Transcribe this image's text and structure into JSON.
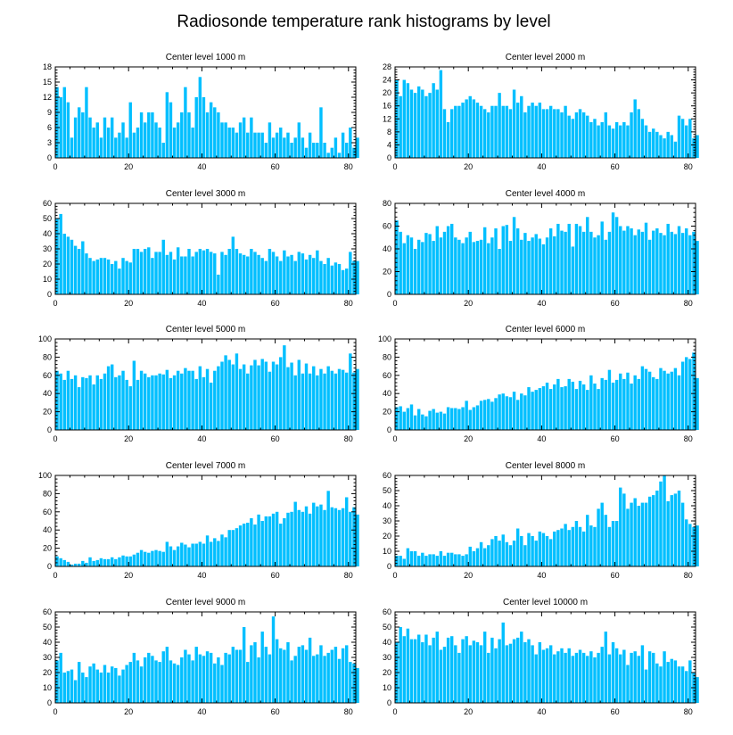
{
  "figure": {
    "title": "Radiosonde temperature rank histograms by level"
  },
  "colors": {
    "bar": "#00BFFF",
    "axis": "#000000",
    "background": "#ffffff"
  },
  "chart_data": [
    {
      "type": "bar",
      "title": "Center level 1000 m",
      "xlabel": "",
      "ylabel": "",
      "xlim": [
        0,
        82
      ],
      "ylim": [
        0,
        18
      ],
      "xticks": [
        0,
        20,
        40,
        60,
        80
      ],
      "yticks": [
        0,
        3,
        6,
        9,
        12,
        15,
        18
      ],
      "categories_start": 0,
      "values": [
        14,
        12,
        14,
        11,
        4,
        8,
        10,
        9,
        14,
        8,
        6,
        7,
        4,
        8,
        6,
        8,
        4,
        5,
        7,
        4,
        11,
        5,
        6,
        9,
        7,
        9,
        9,
        7,
        6,
        3,
        13,
        11,
        6,
        7,
        9,
        14,
        9,
        6,
        12,
        16,
        12,
        9,
        11,
        10,
        9,
        7,
        7,
        6,
        6,
        5,
        7,
        8,
        5,
        8,
        5,
        5,
        5,
        3,
        7,
        4,
        5,
        6,
        4,
        5,
        3,
        4,
        7,
        4,
        2,
        5,
        3,
        3,
        10,
        3,
        1,
        2,
        4,
        1,
        5,
        3,
        6,
        2,
        4
      ]
    },
    {
      "type": "bar",
      "title": "Center level 2000 m",
      "xlabel": "",
      "ylabel": "",
      "xlim": [
        0,
        82
      ],
      "ylim": [
        0,
        28
      ],
      "xticks": [
        0,
        20,
        40,
        60,
        80
      ],
      "yticks": [
        0,
        4,
        8,
        12,
        16,
        20,
        24,
        28
      ],
      "categories_start": 0,
      "values": [
        24,
        19,
        24,
        23,
        21,
        20,
        22,
        21,
        19,
        20,
        23,
        21,
        27,
        15,
        11,
        15,
        16,
        16,
        17,
        18,
        19,
        18,
        17,
        16,
        15,
        14,
        16,
        16,
        20,
        16,
        16,
        15,
        21,
        17,
        19,
        14,
        16,
        17,
        16,
        17,
        15,
        15,
        16,
        15,
        15,
        14,
        16,
        13,
        12,
        14,
        15,
        14,
        13,
        11,
        12,
        10,
        11,
        14,
        10,
        9,
        11,
        10,
        11,
        10,
        14,
        18,
        15,
        12,
        10,
        8,
        9,
        8,
        7,
        6,
        8,
        7,
        5,
        13,
        12,
        10,
        12,
        6,
        7
      ]
    },
    {
      "type": "bar",
      "title": "Center level 3000 m",
      "xlabel": "",
      "ylabel": "",
      "xlim": [
        0,
        82
      ],
      "ylim": [
        0,
        60
      ],
      "xticks": [
        0,
        20,
        40,
        60,
        80
      ],
      "yticks": [
        0,
        10,
        20,
        30,
        40,
        50,
        60
      ],
      "categories_start": 0,
      "values": [
        50,
        53,
        40,
        38,
        36,
        32,
        30,
        35,
        27,
        24,
        22,
        23,
        24,
        24,
        23,
        20,
        22,
        17,
        24,
        22,
        21,
        30,
        30,
        28,
        30,
        31,
        24,
        28,
        28,
        36,
        26,
        28,
        23,
        31,
        25,
        25,
        30,
        25,
        28,
        30,
        29,
        30,
        28,
        27,
        13,
        28,
        26,
        30,
        38,
        30,
        27,
        26,
        25,
        30,
        28,
        26,
        24,
        22,
        30,
        28,
        25,
        22,
        29,
        25,
        26,
        22,
        28,
        27,
        23,
        26,
        24,
        29,
        22,
        20,
        24,
        19,
        21,
        20,
        16,
        17,
        28,
        22,
        22
      ]
    },
    {
      "type": "bar",
      "title": "Center level 4000 m",
      "xlabel": "",
      "ylabel": "",
      "xlim": [
        0,
        82
      ],
      "ylim": [
        0,
        80
      ],
      "xticks": [
        0,
        20,
        40,
        60,
        80
      ],
      "yticks": [
        0,
        20,
        40,
        60,
        80
      ],
      "categories_start": 0,
      "values": [
        65,
        55,
        45,
        52,
        50,
        40,
        48,
        46,
        54,
        53,
        47,
        60,
        50,
        55,
        60,
        62,
        50,
        48,
        45,
        50,
        55,
        46,
        47,
        48,
        59,
        45,
        50,
        58,
        40,
        60,
        61,
        47,
        68,
        58,
        48,
        54,
        47,
        50,
        53,
        49,
        44,
        50,
        58,
        51,
        62,
        56,
        55,
        62,
        42,
        62,
        60,
        55,
        68,
        55,
        50,
        52,
        64,
        48,
        55,
        72,
        68,
        60,
        56,
        60,
        58,
        52,
        57,
        55,
        63,
        48,
        56,
        58,
        54,
        52,
        62,
        55,
        53,
        60,
        54,
        58,
        52,
        55,
        47
      ]
    },
    {
      "type": "bar",
      "title": "Center level 5000 m",
      "xlabel": "",
      "ylabel": "",
      "xlim": [
        0,
        82
      ],
      "ylim": [
        0,
        100
      ],
      "xticks": [
        0,
        20,
        40,
        60,
        80
      ],
      "yticks": [
        0,
        20,
        40,
        60,
        80,
        100
      ],
      "categories_start": 0,
      "values": [
        65,
        62,
        55,
        65,
        56,
        60,
        47,
        58,
        57,
        60,
        50,
        60,
        56,
        62,
        70,
        72,
        58,
        60,
        65,
        55,
        48,
        76,
        55,
        65,
        62,
        58,
        60,
        60,
        62,
        61,
        66,
        57,
        60,
        65,
        62,
        68,
        65,
        65,
        56,
        70,
        58,
        67,
        52,
        65,
        70,
        75,
        82,
        77,
        72,
        84,
        67,
        72,
        62,
        71,
        77,
        71,
        78,
        75,
        64,
        75,
        72,
        80,
        93,
        69,
        74,
        60,
        77,
        62,
        73,
        62,
        70,
        60,
        67,
        62,
        70,
        65,
        62,
        67,
        66,
        63,
        84,
        63,
        67
      ]
    },
    {
      "type": "bar",
      "title": "Center level 6000 m",
      "xlabel": "",
      "ylabel": "",
      "xlim": [
        0,
        82
      ],
      "ylim": [
        0,
        100
      ],
      "xticks": [
        0,
        20,
        40,
        60,
        80
      ],
      "yticks": [
        0,
        20,
        40,
        60,
        80,
        100
      ],
      "categories_start": 0,
      "values": [
        25,
        26,
        20,
        24,
        28,
        16,
        23,
        17,
        15,
        21,
        23,
        19,
        20,
        18,
        25,
        24,
        24,
        23,
        25,
        32,
        22,
        25,
        27,
        32,
        33,
        34,
        31,
        35,
        39,
        40,
        37,
        36,
        42,
        33,
        40,
        38,
        47,
        42,
        44,
        46,
        48,
        52,
        45,
        50,
        56,
        47,
        48,
        56,
        53,
        45,
        54,
        50,
        44,
        60,
        51,
        45,
        57,
        55,
        66,
        52,
        55,
        62,
        56,
        63,
        51,
        60,
        56,
        70,
        67,
        64,
        58,
        56,
        68,
        65,
        62,
        64,
        68,
        60,
        75,
        80,
        78,
        85,
        57
      ]
    },
    {
      "type": "bar",
      "title": "Center level 7000 m",
      "xlabel": "",
      "ylabel": "",
      "xlim": [
        0,
        82
      ],
      "ylim": [
        0,
        100
      ],
      "xticks": [
        0,
        20,
        40,
        60,
        80
      ],
      "yticks": [
        0,
        20,
        40,
        60,
        80,
        100
      ],
      "categories_start": 0,
      "values": [
        11,
        9,
        7,
        5,
        2,
        3,
        3,
        6,
        4,
        10,
        6,
        7,
        9,
        8,
        8,
        10,
        8,
        10,
        12,
        11,
        11,
        13,
        15,
        18,
        16,
        15,
        17,
        18,
        17,
        16,
        27,
        22,
        18,
        22,
        26,
        24,
        21,
        25,
        25,
        27,
        25,
        34,
        27,
        31,
        28,
        35,
        32,
        40,
        40,
        42,
        45,
        47,
        48,
        53,
        46,
        57,
        50,
        55,
        55,
        58,
        60,
        47,
        53,
        59,
        60,
        71,
        62,
        60,
        66,
        58,
        70,
        66,
        68,
        62,
        83,
        65,
        64,
        62,
        64,
        76,
        60,
        65,
        57
      ]
    },
    {
      "type": "bar",
      "title": "Center level 8000 m",
      "xlabel": "",
      "ylabel": "",
      "xlim": [
        0,
        82
      ],
      "ylim": [
        0,
        60
      ],
      "xticks": [
        0,
        20,
        40,
        60,
        80
      ],
      "yticks": [
        0,
        10,
        20,
        30,
        40,
        50,
        60
      ],
      "categories_start": 0,
      "values": [
        7,
        7,
        5,
        12,
        10,
        10,
        7,
        9,
        7,
        8,
        8,
        7,
        10,
        7,
        9,
        9,
        8,
        8,
        7,
        8,
        13,
        10,
        12,
        16,
        12,
        14,
        18,
        20,
        17,
        21,
        16,
        14,
        17,
        25,
        20,
        14,
        22,
        20,
        17,
        23,
        22,
        20,
        18,
        23,
        24,
        25,
        28,
        24,
        26,
        30,
        26,
        23,
        34,
        27,
        26,
        38,
        42,
        34,
        26,
        30,
        30,
        52,
        48,
        38,
        42,
        45,
        40,
        42,
        42,
        46,
        47,
        50,
        56,
        60,
        43,
        47,
        48,
        50,
        42,
        31,
        28,
        26,
        27
      ]
    },
    {
      "type": "bar",
      "title": "Center level 9000 m",
      "xlabel": "",
      "ylabel": "",
      "xlim": [
        0,
        82
      ],
      "ylim": [
        0,
        60
      ],
      "xticks": [
        0,
        20,
        40,
        60,
        80
      ],
      "yticks": [
        0,
        10,
        20,
        30,
        40,
        50,
        60
      ],
      "categories_start": 0,
      "values": [
        28,
        33,
        20,
        21,
        22,
        15,
        27,
        20,
        17,
        24,
        26,
        22,
        20,
        25,
        20,
        24,
        23,
        18,
        22,
        25,
        27,
        33,
        28,
        24,
        30,
        33,
        31,
        28,
        27,
        34,
        37,
        28,
        26,
        25,
        30,
        35,
        32,
        28,
        37,
        32,
        31,
        34,
        33,
        26,
        30,
        25,
        33,
        32,
        37,
        35,
        35,
        50,
        27,
        38,
        40,
        30,
        47,
        37,
        32,
        57,
        42,
        36,
        35,
        40,
        28,
        31,
        37,
        38,
        35,
        43,
        31,
        32,
        38,
        31,
        33,
        35,
        37,
        29,
        36,
        38,
        27,
        26,
        23
      ]
    },
    {
      "type": "bar",
      "title": "Center level 10000 m",
      "xlabel": "",
      "ylabel": "",
      "xlim": [
        0,
        82
      ],
      "ylim": [
        0,
        60
      ],
      "xticks": [
        0,
        20,
        40,
        60,
        80
      ],
      "yticks": [
        0,
        10,
        20,
        30,
        40,
        50,
        60
      ],
      "categories_start": 0,
      "values": [
        40,
        50,
        44,
        49,
        42,
        42,
        45,
        40,
        45,
        38,
        43,
        47,
        35,
        37,
        43,
        44,
        38,
        33,
        42,
        44,
        38,
        41,
        40,
        38,
        47,
        33,
        43,
        36,
        42,
        53,
        38,
        39,
        42,
        43,
        47,
        40,
        42,
        38,
        32,
        40,
        35,
        36,
        38,
        32,
        34,
        36,
        33,
        36,
        31,
        33,
        35,
        33,
        31,
        34,
        30,
        33,
        37,
        47,
        32,
        40,
        36,
        32,
        35,
        25,
        33,
        34,
        31,
        38,
        22,
        34,
        33,
        26,
        24,
        34,
        27,
        29,
        28,
        24,
        24,
        21,
        28,
        20,
        17
      ]
    }
  ]
}
